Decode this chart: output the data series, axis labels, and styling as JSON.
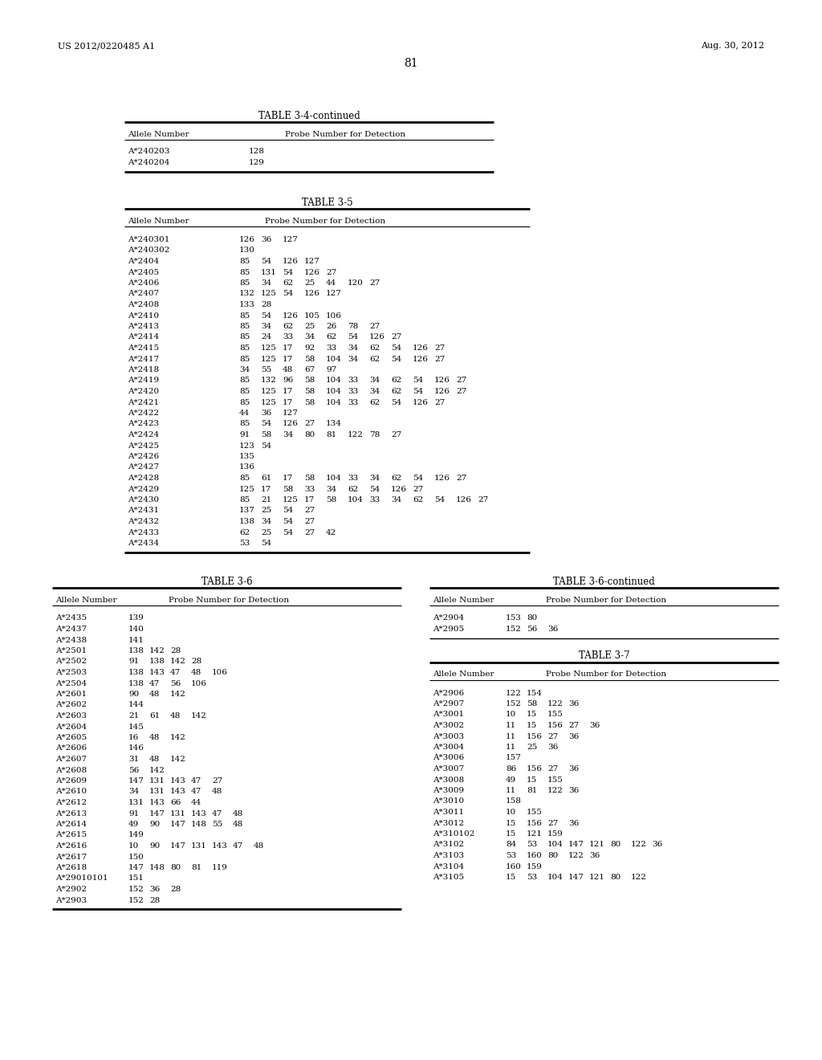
{
  "page_left": "US 2012/0220485 A1",
  "page_right": "Aug. 30, 2012",
  "page_number": "81",
  "bg_color": "#ffffff",
  "text_color": "#000000",
  "table34_continued": {
    "title": "TABLE 3-4-continued",
    "header_col1": "Allele Number",
    "header_col2": "Probe Number for Detection",
    "rows": [
      [
        "A*240203",
        "128"
      ],
      [
        "A*240204",
        "129"
      ]
    ]
  },
  "table35": {
    "title": "TABLE 3-5",
    "header_col1": "Allele Number",
    "header_col2": "Probe Number for Detection",
    "rows": [
      [
        "A*240301",
        "126 36 127"
      ],
      [
        "A*240302",
        "130"
      ],
      [
        "A*2404",
        "85 54 126 127"
      ],
      [
        "A*2405",
        "85 131 54 126 27"
      ],
      [
        "A*2406",
        "85 34 62 25 44 120 27"
      ],
      [
        "A*2407",
        "132 125 54 126 127"
      ],
      [
        "A*2408",
        "133 28"
      ],
      [
        "A*2410",
        "85 54 126 105 106"
      ],
      [
        "A*2413",
        "85 34 62 25 26 78 27"
      ],
      [
        "A*2414",
        "85 24 33 34 62 54 126 27"
      ],
      [
        "A*2415",
        "85 125 17 92 33 34 62 54 126 27"
      ],
      [
        "A*2417",
        "85 125 17 58 104 34 62 54 126 27"
      ],
      [
        "A*2418",
        "34 55 48 67 97"
      ],
      [
        "A*2419",
        "85 132 96 58 104 33 34 62 54 126 27"
      ],
      [
        "A*2420",
        "85 125 17 58 104 33 34 62 54 126 27"
      ],
      [
        "A*2421",
        "85 125 17 58 104 33 62 54 126 27"
      ],
      [
        "A*2422",
        "44 36 127"
      ],
      [
        "A*2423",
        "85 54 126 27 134"
      ],
      [
        "A*2424",
        "91 58 34 80 81 122 78 27"
      ],
      [
        "A*2425",
        "123 54"
      ],
      [
        "A*2426",
        "135"
      ],
      [
        "A*2427",
        "136"
      ],
      [
        "A*2428",
        "85 61 17 58 104 33 34 62 54 126 27"
      ],
      [
        "A*2429",
        "125 17 58 33 34 62 54 126 27"
      ],
      [
        "A*2430",
        "85 21 125 17 58 104 33 34 62 54 126 27"
      ],
      [
        "A*2431",
        "137 25 54 27"
      ],
      [
        "A*2432",
        "138 34 54 27"
      ],
      [
        "A*2433",
        "62 25 54 27 42"
      ],
      [
        "A*2434",
        "53 54"
      ]
    ]
  },
  "table36": {
    "title": "TABLE 3-6",
    "header_col1": "Allele Number",
    "header_col2": "Probe Number for Detection",
    "rows": [
      [
        "A*2435",
        "139"
      ],
      [
        "A*2437",
        "140"
      ],
      [
        "A*2438",
        "141"
      ],
      [
        "A*2501",
        "138 142 28"
      ],
      [
        "A*2502",
        "91 138 142 28"
      ],
      [
        "A*2503",
        "138 143 47 48 106"
      ],
      [
        "A*2504",
        "138 47 56 106"
      ],
      [
        "A*2601",
        "90 48 142"
      ],
      [
        "A*2602",
        "144"
      ],
      [
        "A*2603",
        "21 61 48 142"
      ],
      [
        "A*2604",
        "145"
      ],
      [
        "A*2605",
        "16 48 142"
      ],
      [
        "A*2606",
        "146"
      ],
      [
        "A*2607",
        "31 48 142"
      ],
      [
        "A*2608",
        "56 142"
      ],
      [
        "A*2609",
        "147 131 143 47 27"
      ],
      [
        "A*2610",
        "34 131 143 47 48"
      ],
      [
        "A*2612",
        "131 143 66 44"
      ],
      [
        "A*2613",
        "91 147 131 143 47 48"
      ],
      [
        "A*2614",
        "49 90 147 148 55 48"
      ],
      [
        "A*2615",
        "149"
      ],
      [
        "A*2616",
        "10 90 147 131 143 47 48"
      ],
      [
        "A*2617",
        "150"
      ],
      [
        "A*2618",
        "147 148 80 81 119"
      ],
      [
        "A*29010101",
        "151"
      ],
      [
        "A*2902",
        "152 36 28"
      ],
      [
        "A*2903",
        "152 28"
      ]
    ]
  },
  "table36_continued": {
    "title": "TABLE 3-6-continued",
    "header_col1": "Allele Number",
    "header_col2": "Probe Number for Detection",
    "rows": [
      [
        "A*2904",
        "153 80"
      ],
      [
        "A*2905",
        "152 56 36"
      ]
    ]
  },
  "table37": {
    "title": "TABLE 3-7",
    "header_col1": "Allele Number",
    "header_col2": "Probe Number for Detection",
    "rows": [
      [
        "A*2906",
        "122 154"
      ],
      [
        "A*2907",
        "152 58 122 36"
      ],
      [
        "A*3001",
        "10 15 155"
      ],
      [
        "A*3002",
        "11 15 156 27 36"
      ],
      [
        "A*3003",
        "11 156 27 36"
      ],
      [
        "A*3004",
        "11 25 36"
      ],
      [
        "A*3006",
        "157"
      ],
      [
        "A*3007",
        "86 156 27 36"
      ],
      [
        "A*3008",
        "49 15 155"
      ],
      [
        "A*3009",
        "11 81 122 36"
      ],
      [
        "A*3010",
        "158"
      ],
      [
        "A*3011",
        "10 155"
      ],
      [
        "A*3012",
        "15 156 27 36"
      ],
      [
        "A*310102",
        "15 121 159"
      ],
      [
        "A*3102",
        "84 53 104 147 121 80 122 36"
      ],
      [
        "A*3103",
        "53 160 80 122 36"
      ],
      [
        "A*3104",
        "160 159"
      ],
      [
        "A*3105",
        "15 53 104 147 121 80 122"
      ]
    ]
  }
}
